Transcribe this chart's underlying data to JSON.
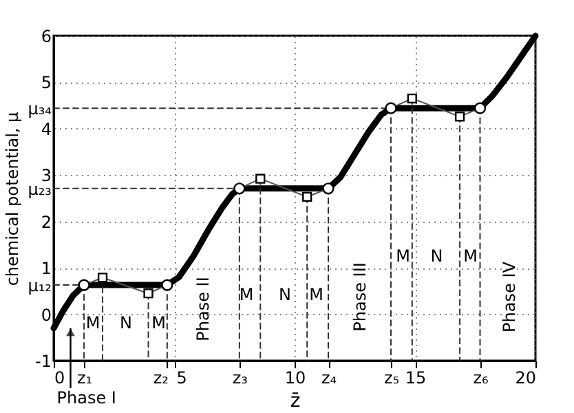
{
  "chart_data": {
    "type": "line",
    "xlabel": "z̄",
    "ylabel": "chemical potential, μ",
    "xlim": [
      0,
      20
    ],
    "ylim": [
      -1,
      6
    ],
    "xticks": [
      0,
      {
        "value": 1.26,
        "label": "z₁"
      },
      {
        "value": 4.71,
        "label": "z₂"
      },
      5,
      {
        "value": 7.71,
        "label": "z₃"
      },
      10,
      {
        "value": 11.4,
        "label": "z₄"
      },
      {
        "value": 14.0,
        "label": "z₅"
      },
      15,
      {
        "value": 17.7,
        "label": "z₆"
      },
      20
    ],
    "yticks": [
      -1,
      0,
      {
        "value": 0.63,
        "label": "μ₁₂"
      },
      1,
      2,
      {
        "value": 2.71,
        "label": "μ₂₃"
      },
      3,
      4,
      {
        "value": 4.44,
        "label": "μ₃₄"
      },
      5,
      6
    ],
    "grid": true,
    "series": [
      {
        "color": "#000000",
        "x": [
          0,
          0.4,
          0.8,
          1.26,
          4.71,
          5.2,
          5.8,
          6.4,
          7.0,
          7.4,
          7.71,
          11.4,
          11.9,
          12.5,
          13.1,
          13.6,
          14.0,
          17.7,
          18.2,
          18.8,
          19.4,
          20
        ],
        "values": [
          -0.3,
          0.08,
          0.4,
          0.63,
          0.63,
          0.8,
          1.25,
          1.8,
          2.3,
          2.58,
          2.71,
          2.71,
          2.95,
          3.45,
          3.95,
          4.3,
          4.44,
          4.44,
          4.7,
          5.1,
          5.55,
          6
        ]
      },
      {
        "color": "#555555",
        "x": [
          1.26,
          2.03,
          3.93,
          4.71
        ],
        "values": [
          0.63,
          0.79,
          0.45,
          0.63
        ]
      },
      {
        "color": "#555555",
        "x": [
          7.71,
          8.58,
          10.52,
          11.4
        ],
        "values": [
          2.71,
          2.92,
          2.53,
          2.71
        ]
      },
      {
        "color": "#555555",
        "x": [
          14.0,
          14.88,
          16.86,
          17.7
        ],
        "values": [
          4.44,
          4.65,
          4.26,
          4.44
        ]
      },
      {
        "color": "#333333",
        "line_style": "dashed",
        "x": [
          0,
          1.26
        ],
        "values": [
          0.63,
          0.63
        ]
      },
      {
        "color": "#333333",
        "line_style": "dashed",
        "x": [
          0,
          7.71
        ],
        "values": [
          2.71,
          2.71
        ]
      },
      {
        "color": "#333333",
        "line_style": "dashed",
        "x": [
          0,
          14.0
        ],
        "values": [
          4.44,
          4.44
        ]
      },
      {
        "color": "#333333",
        "line_style": "dashed",
        "x": [
          1.26,
          1.26
        ],
        "values": [
          0.63,
          -1
        ]
      },
      {
        "color": "#333333",
        "line_style": "dashed",
        "x": [
          2.03,
          2.03
        ],
        "values": [
          0.79,
          -1
        ]
      },
      {
        "color": "#333333",
        "line_style": "dashed",
        "x": [
          3.93,
          3.93
        ],
        "values": [
          0.45,
          -1
        ]
      },
      {
        "color": "#333333",
        "line_style": "dashed",
        "x": [
          4.71,
          4.71
        ],
        "values": [
          0.63,
          -1
        ]
      },
      {
        "color": "#333333",
        "line_style": "dashed",
        "x": [
          7.71,
          7.71
        ],
        "values": [
          2.71,
          -1
        ]
      },
      {
        "color": "#333333",
        "line_style": "dashed",
        "x": [
          8.58,
          8.58
        ],
        "values": [
          2.92,
          -1
        ]
      },
      {
        "color": "#333333",
        "line_style": "dashed",
        "x": [
          10.52,
          10.52
        ],
        "values": [
          2.53,
          -1
        ]
      },
      {
        "color": "#333333",
        "line_style": "dashed",
        "x": [
          11.4,
          11.4
        ],
        "values": [
          2.71,
          -1
        ]
      },
      {
        "color": "#333333",
        "line_style": "dashed",
        "x": [
          14.0,
          14.0
        ],
        "values": [
          4.44,
          -1
        ]
      },
      {
        "color": "#333333",
        "line_style": "dashed",
        "x": [
          14.88,
          14.88
        ],
        "values": [
          4.65,
          -1
        ]
      },
      {
        "color": "#333333",
        "line_style": "dashed",
        "x": [
          16.86,
          16.86
        ],
        "values": [
          4.26,
          -1
        ]
      },
      {
        "color": "#333333",
        "line_style": "dashed",
        "x": [
          17.7,
          17.7
        ],
        "values": [
          4.44,
          -1
        ]
      },
      {
        "type": "scatter",
        "marker": "circle",
        "color": "#000000",
        "x": [
          1.26,
          4.71,
          7.71,
          11.4,
          14.0,
          17.7
        ],
        "values": [
          0.63,
          0.63,
          2.71,
          2.71,
          4.44,
          4.44
        ]
      },
      {
        "type": "scatter",
        "marker": "square",
        "color": "#000000",
        "x": [
          2.03,
          3.93,
          8.58,
          10.52,
          14.88,
          16.86
        ],
        "values": [
          0.79,
          0.45,
          2.92,
          2.53,
          4.65,
          4.26
        ]
      }
    ],
    "annotations": [
      "Phase I",
      "Phase II",
      "Phase III",
      "Phase IV",
      "M",
      "N",
      "M",
      "M",
      "N",
      "M",
      "M",
      "N",
      "M"
    ]
  }
}
